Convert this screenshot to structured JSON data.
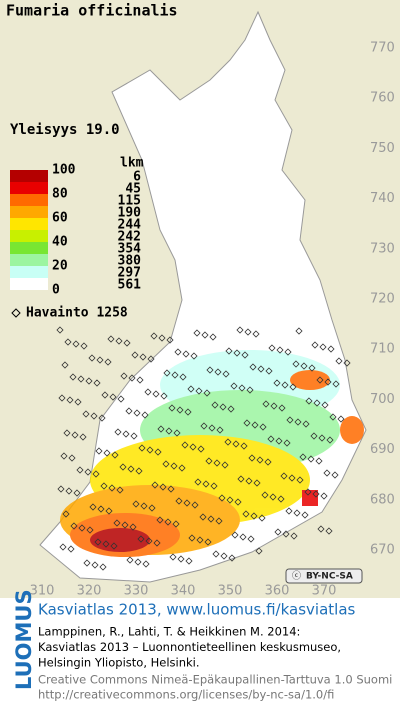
{
  "title": "Fumaria officinalis",
  "frequency": "Yleisyys  19.0",
  "legend": {
    "scale": [
      100,
      80,
      60,
      40,
      20,
      0
    ],
    "count_header": "lkm",
    "classes": [
      {
        "color": "#b40000",
        "count": 6
      },
      {
        "color": "#e80000",
        "count": 45
      },
      {
        "color": "#ff6a00",
        "count": 115
      },
      {
        "color": "#ffa800",
        "count": 190
      },
      {
        "color": "#ffe600",
        "count": 244
      },
      {
        "color": "#c8f000",
        "count": 242
      },
      {
        "color": "#78e632",
        "count": 354
      },
      {
        "color": "#9cf5a0",
        "count": 380
      },
      {
        "color": "#c8fff5",
        "count": 297
      },
      {
        "color": "#ffffff",
        "count": 561
      }
    ]
  },
  "observations": "Havainto 1258",
  "grid": {
    "north": [
      770,
      760,
      750,
      740,
      730,
      720,
      710,
      700,
      690,
      680,
      670
    ],
    "east": [
      310,
      320,
      330,
      340,
      350,
      360,
      370
    ]
  },
  "license_badge": "BY-NC-SA",
  "logo": "LUOMUS",
  "credits": {
    "heading": "Kasviatlas 2013, www.luomus.fi/kasviatlas",
    "citation": [
      "Lamppinen, R., Lahti, T. & Heikkinen M. 2014:",
      "Kasviatlas 2013 – Luonnontieteellinen keskusmuseo,",
      "Helsingin Yliopisto, Helsinki."
    ],
    "license": [
      "Creative Commons Nimeä-Epäkaupallinen-Tarttuva 1.0 Suomi",
      "http://creativecommons.org/licenses/by-nc-sa/1.0/fi"
    ]
  }
}
